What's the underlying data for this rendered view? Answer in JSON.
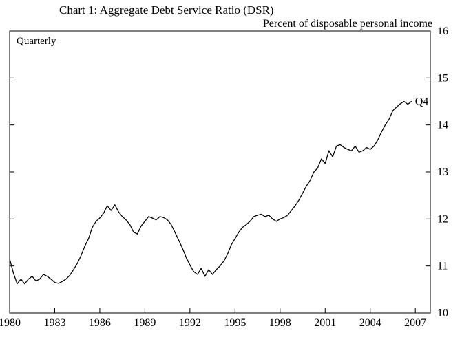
{
  "title": "Chart 1: Aggregate Debt Service Ratio (DSR)",
  "subtitle": "Percent of disposable personal income",
  "chart_data": {
    "type": "line",
    "title": "Chart 1: Aggregate Debt Service Ratio (DSR)",
    "ylabel_note": "Percent of disposable personal income",
    "frequency_label": "Quarterly",
    "end_label": "Q4",
    "series_name": "Aggregate Debt Service Ratio",
    "x_start": 1980,
    "x_step_years": 0.25,
    "xlim": [
      1980,
      2008
    ],
    "ylim": [
      10,
      16
    ],
    "x_ticks": [
      1980,
      1983,
      1986,
      1989,
      1992,
      1995,
      1998,
      2001,
      2004,
      2007
    ],
    "y_ticks": [
      10,
      11,
      12,
      13,
      14,
      15,
      16
    ],
    "line_color": "#000000",
    "values": [
      11.15,
      10.85,
      10.62,
      10.72,
      10.62,
      10.72,
      10.78,
      10.68,
      10.72,
      10.82,
      10.78,
      10.72,
      10.65,
      10.63,
      10.67,
      10.72,
      10.8,
      10.92,
      11.05,
      11.22,
      11.42,
      11.58,
      11.82,
      11.95,
      12.02,
      12.12,
      12.28,
      12.18,
      12.3,
      12.15,
      12.05,
      11.98,
      11.88,
      11.72,
      11.68,
      11.85,
      11.95,
      12.05,
      12.02,
      11.98,
      12.05,
      12.03,
      11.98,
      11.88,
      11.72,
      11.55,
      11.38,
      11.18,
      11.02,
      10.88,
      10.82,
      10.95,
      10.78,
      10.92,
      10.82,
      10.92,
      11.0,
      11.1,
      11.25,
      11.45,
      11.58,
      11.72,
      11.82,
      11.88,
      11.95,
      12.05,
      12.08,
      12.1,
      12.05,
      12.08,
      12.0,
      11.95,
      12.0,
      12.03,
      12.08,
      12.18,
      12.28,
      12.4,
      12.55,
      12.7,
      12.82,
      13.0,
      13.08,
      13.28,
      13.18,
      13.45,
      13.32,
      13.55,
      13.58,
      13.52,
      13.48,
      13.45,
      13.55,
      13.42,
      13.45,
      13.52,
      13.48,
      13.55,
      13.68,
      13.85,
      14.0,
      14.12,
      14.3,
      14.38,
      14.45,
      14.5,
      14.44,
      14.5
    ]
  }
}
